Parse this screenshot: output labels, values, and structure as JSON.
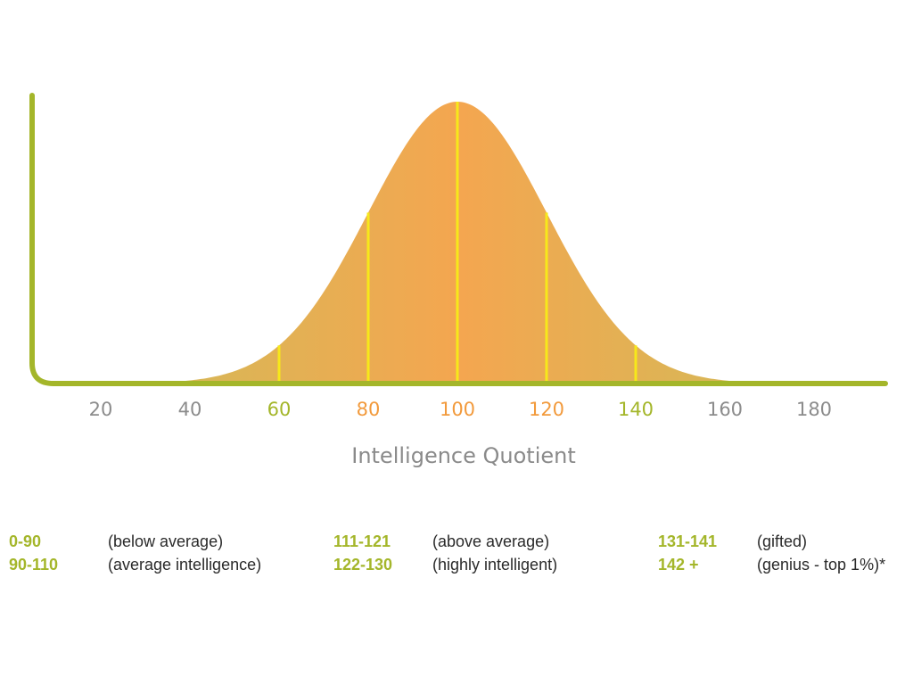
{
  "chart_data": {
    "type": "area",
    "xlabel": "Intelligence Quotient",
    "ylabel": "",
    "title": "",
    "distribution": {
      "mean": 100,
      "sd": 20
    },
    "xlim": [
      0,
      200
    ],
    "x_ticks": [
      {
        "value": 20,
        "label": "20",
        "color": "#8c8c8c"
      },
      {
        "value": 40,
        "label": "40",
        "color": "#8c8c8c"
      },
      {
        "value": 60,
        "label": "60",
        "color": "#a4b62a"
      },
      {
        "value": 80,
        "label": "80",
        "color": "#f29a3c"
      },
      {
        "value": 100,
        "label": "100",
        "color": "#f29a3c"
      },
      {
        "value": 120,
        "label": "120",
        "color": "#f29a3c"
      },
      {
        "value": 140,
        "label": "140",
        "color": "#a4b62a"
      },
      {
        "value": 160,
        "label": "160",
        "color": "#8c8c8c"
      },
      {
        "value": 180,
        "label": "180",
        "color": "#8c8c8c"
      }
    ],
    "divider_lines": [
      60,
      80,
      100,
      120,
      140
    ],
    "colors": {
      "axis": "#a4b62a",
      "fill_edge": "#c9c05a",
      "fill_center": "#f4a650",
      "divider": "#f7e81a"
    }
  },
  "legend": [
    {
      "range": "0-90",
      "label": "(below average)"
    },
    {
      "range": "90-110",
      "label": "(average intelligence)"
    },
    {
      "range": "111-121",
      "label": "(above average)"
    },
    {
      "range": "122-130",
      "label": "(highly intelligent)"
    },
    {
      "range": "131-141",
      "label": "(gifted)"
    },
    {
      "range": "142 +",
      "label": "(genius - top 1%)*"
    }
  ]
}
